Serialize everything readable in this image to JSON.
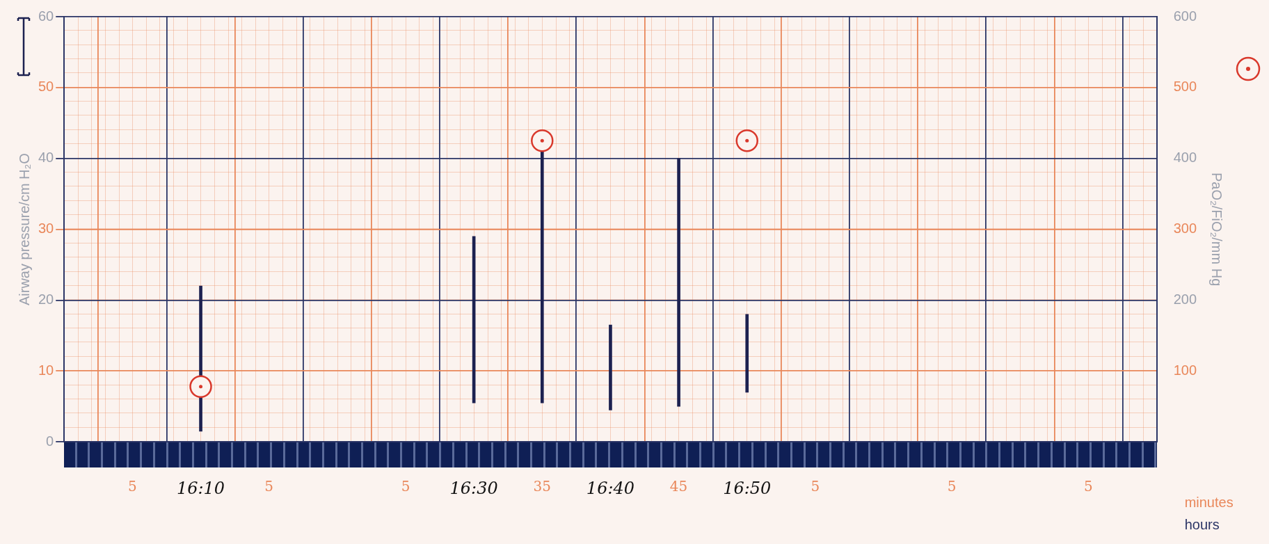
{
  "chart_data": {
    "type": "bar",
    "ylabel": "Airway pressure/cm H₂O",
    "y2label": "PaO₂/FiO₂/mm Hg",
    "categories": [
      null,
      "5",
      "16:10",
      "5",
      null,
      "5",
      "16:30",
      "35",
      "16:40",
      "45",
      "16:50",
      "5",
      null,
      "5",
      null,
      "5",
      null
    ],
    "ylim": [
      0,
      60
    ],
    "yticks": [
      0,
      10,
      20,
      30,
      40,
      50,
      60
    ],
    "y2lim": [
      0,
      600
    ],
    "y2ticks": [
      100,
      200,
      300,
      400,
      500,
      600
    ],
    "grid": true,
    "marker": "circle",
    "series": [
      {
        "color": "#1c2150",
        "base": [
          null,
          null,
          1.5,
          null,
          null,
          null,
          5.5,
          5.5,
          4.5,
          5,
          7,
          null,
          null,
          null,
          null,
          null,
          null
        ],
        "values": [
          null,
          null,
          20.5,
          null,
          null,
          null,
          23.5,
          35.5,
          12,
          35,
          11,
          null,
          null,
          null,
          null,
          null,
          null
        ]
      },
      {
        "type": "scatter",
        "axis": "y2",
        "color": "#d9382b",
        "x": [
          "16:10",
          "35",
          "16:50"
        ],
        "values": [
          78,
          425,
          425
        ]
      }
    ],
    "annotations": [
      "minutes",
      "hours"
    ]
  }
}
